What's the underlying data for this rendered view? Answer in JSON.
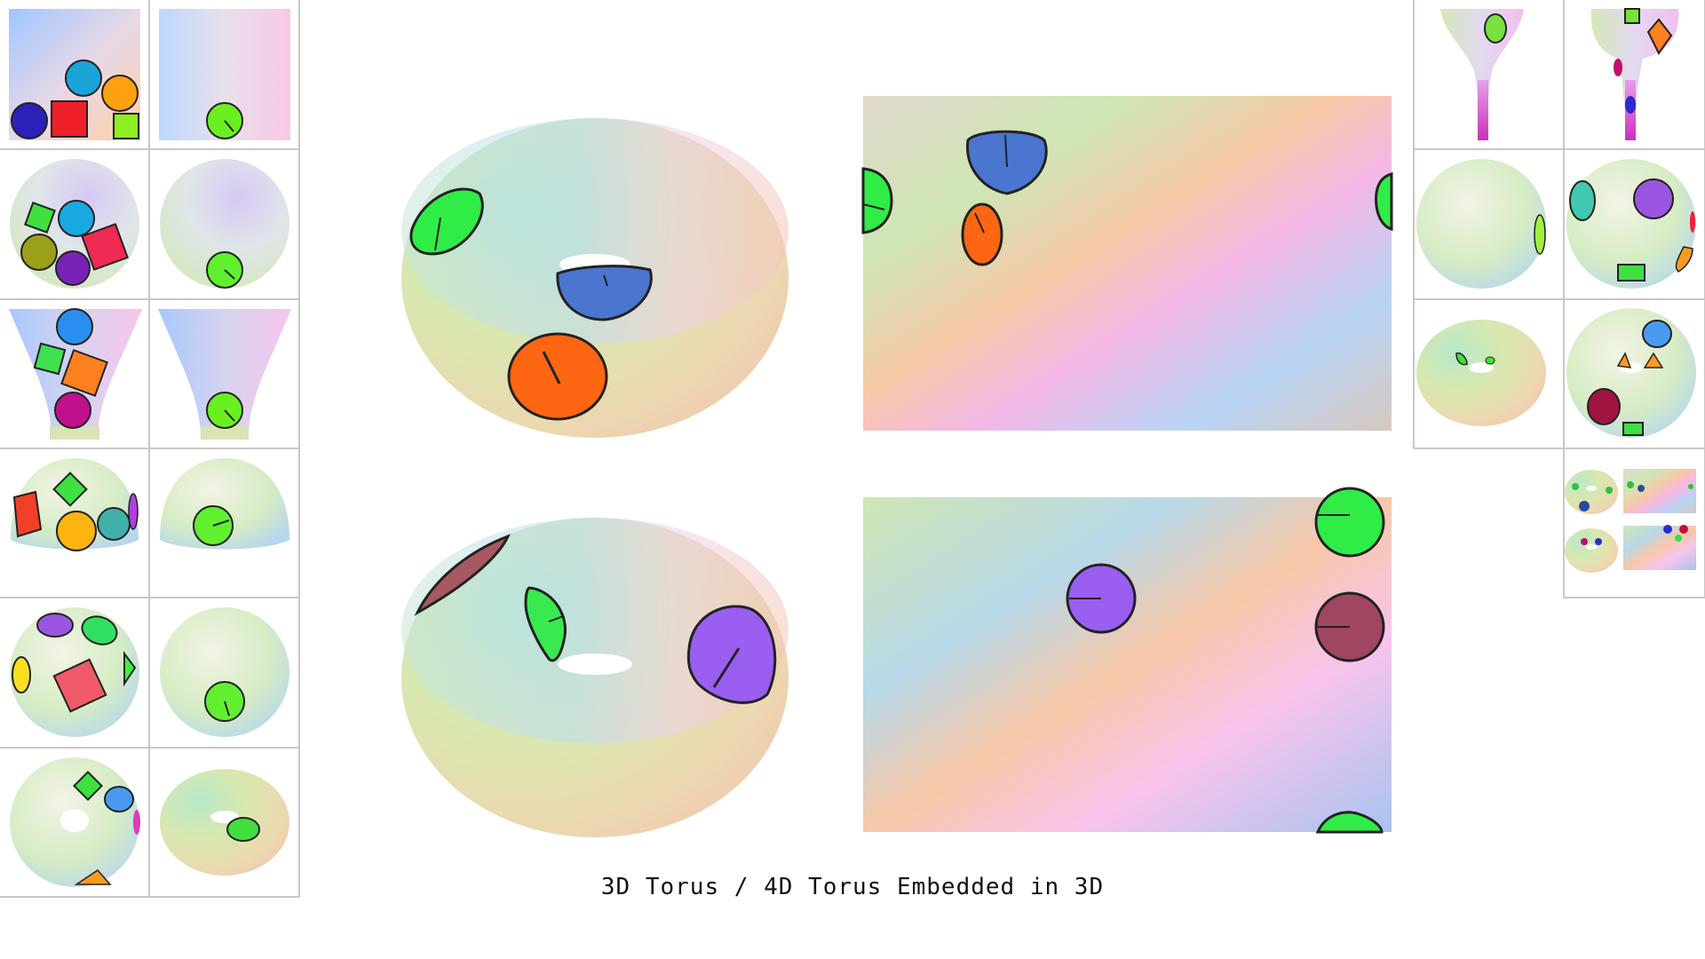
{
  "caption": "3D Torus / 4D Torus Embedded in 3D",
  "left_grid": {
    "rows": [
      [
        "square-scene-many",
        "square-scene-single"
      ],
      [
        "sphere-scene-many",
        "sphere-scene-single"
      ],
      [
        "funnel-scene-many",
        "funnel-scene-single"
      ],
      [
        "dome-scene-many",
        "dome-scene-single"
      ],
      [
        "ball-scene-many",
        "ball-scene-single"
      ],
      [
        "ring-scene-many",
        "ring-scene-single"
      ]
    ]
  },
  "right_grid": {
    "rows": [
      [
        "trumpet-scene-single",
        "trumpet-scene-many"
      ],
      [
        "sphere-scene-single",
        "sphere-scene-many"
      ],
      [
        "torus-scene-single",
        "torus-scene-many"
      ]
    ],
    "thumbnail": "torus-thumbnail"
  },
  "colors": {
    "green": "#22f04a",
    "blue": "#3d6fd0",
    "orange": "#ff6a10",
    "purple": "#9a5ef0",
    "maroon": "#a04660",
    "cell_border": "#c8c8c8"
  }
}
